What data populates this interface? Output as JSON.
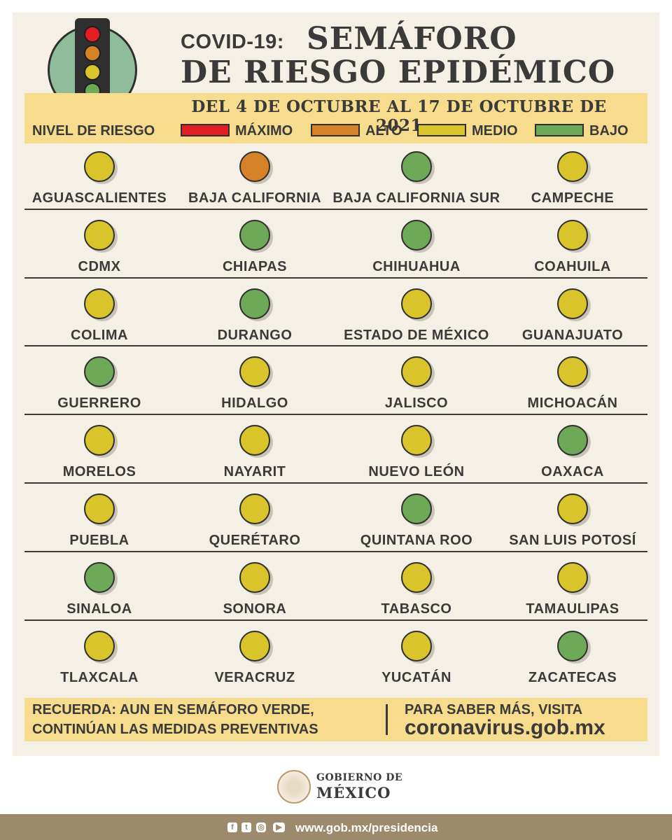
{
  "header": {
    "title_prefix": "COVID-19:",
    "title_line1": "SEMÁFORO",
    "title_line2": "DE RIESGO EPIDÉMICO",
    "date_range": "DEL 4 DE OCTUBRE AL 17 DE OCTUBRE DE 2021"
  },
  "legend": {
    "title": "NIVEL DE RIESGO",
    "items": [
      {
        "label": "MÁXIMO",
        "color": "#e01e24"
      },
      {
        "label": "ALTO",
        "color": "#d48127"
      },
      {
        "label": "MEDIO",
        "color": "#d9c42b"
      },
      {
        "label": "BAJO",
        "color": "#6da956"
      }
    ]
  },
  "level_colors": {
    "maximo": "#e01e24",
    "alto": "#d48127",
    "medio": "#d9c42b",
    "bajo": "#6da956"
  },
  "states": [
    {
      "name": "AGUASCALIENTES",
      "level": "medio"
    },
    {
      "name": "BAJA CALIFORNIA",
      "level": "alto"
    },
    {
      "name": "BAJA CALIFORNIA SUR",
      "level": "bajo"
    },
    {
      "name": "CAMPECHE",
      "level": "medio"
    },
    {
      "name": "CDMX",
      "level": "medio"
    },
    {
      "name": "CHIAPAS",
      "level": "bajo"
    },
    {
      "name": "CHIHUAHUA",
      "level": "bajo"
    },
    {
      "name": "COAHUILA",
      "level": "medio"
    },
    {
      "name": "COLIMA",
      "level": "medio"
    },
    {
      "name": "DURANGO",
      "level": "bajo"
    },
    {
      "name": "ESTADO DE MÉXICO",
      "level": "medio"
    },
    {
      "name": "GUANAJUATO",
      "level": "medio"
    },
    {
      "name": "GUERRERO",
      "level": "bajo"
    },
    {
      "name": "HIDALGO",
      "level": "medio"
    },
    {
      "name": "JALISCO",
      "level": "medio"
    },
    {
      "name": "MICHOACÁN",
      "level": "medio"
    },
    {
      "name": "MORELOS",
      "level": "medio"
    },
    {
      "name": "NAYARIT",
      "level": "medio"
    },
    {
      "name": "NUEVO LEÓN",
      "level": "medio"
    },
    {
      "name": "OAXACA",
      "level": "bajo"
    },
    {
      "name": "PUEBLA",
      "level": "medio"
    },
    {
      "name": "QUERÉTARO",
      "level": "medio"
    },
    {
      "name": "QUINTANA ROO",
      "level": "bajo"
    },
    {
      "name": "SAN LUIS POTOSÍ",
      "level": "medio"
    },
    {
      "name": "SINALOA",
      "level": "bajo"
    },
    {
      "name": "SONORA",
      "level": "medio"
    },
    {
      "name": "TABASCO",
      "level": "medio"
    },
    {
      "name": "TAMAULIPAS",
      "level": "medio"
    },
    {
      "name": "TLAXCALA",
      "level": "medio"
    },
    {
      "name": "VERACRUZ",
      "level": "medio"
    },
    {
      "name": "YUCATÁN",
      "level": "medio"
    },
    {
      "name": "ZACATECAS",
      "level": "bajo"
    }
  ],
  "footer": {
    "reminder_bold": "RECUERDA:",
    "reminder_line1": "AUN EN SEMÁFORO VERDE,",
    "reminder_line2": "CONTINÚAN LAS MEDIDAS PREVENTIVAS",
    "more_info": "PARA SABER MÁS, VISITA",
    "site": "coronavirus.gob.mx"
  },
  "government": {
    "line1": "GOBIERNO DE",
    "line2": "MÉXICO",
    "seal_icon": "national-seal-icon"
  },
  "bottom_bar": {
    "social_icons": [
      "facebook-icon",
      "twitter-icon",
      "instagram-icon",
      "youtube-icon"
    ],
    "url": "www.gob.mx/presidencia"
  }
}
